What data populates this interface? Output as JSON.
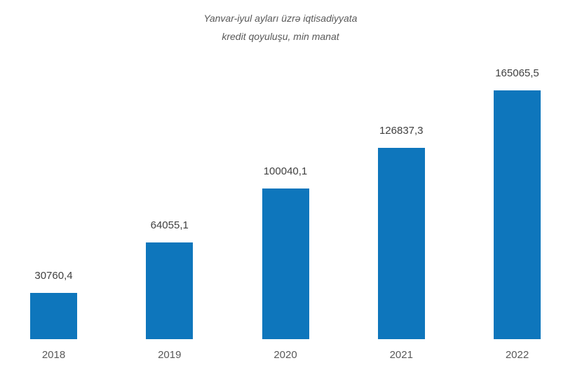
{
  "page": {
    "background": "#ffffff"
  },
  "chart_data": {
    "type": "bar",
    "title": "Yanvar-iyul ayları üzrə iqtisadiyyata kredit qoyuluşu, min manat",
    "title_lines": [
      "Yanvar-iyul ayları üzrə iqtisadiyyata",
      "kredit qoyuluşu, min manat"
    ],
    "categories": [
      "2018",
      "2019",
      "2020",
      "2021",
      "2022"
    ],
    "values": [
      30760.4,
      64055.1,
      100040.1,
      126837.3,
      165065.5
    ],
    "value_labels": [
      "30760,4",
      "64055,1",
      "100040,1",
      "126837,3",
      "165065,5"
    ],
    "xlabel": "",
    "ylabel": "",
    "ylim": [
      0,
      175000
    ],
    "grid": false,
    "legend": false,
    "axes_visible": false,
    "bar_color": "#0e76bc",
    "value_label_color": "#404040",
    "tick_label_color": "#595959",
    "title_color": "#595959"
  }
}
